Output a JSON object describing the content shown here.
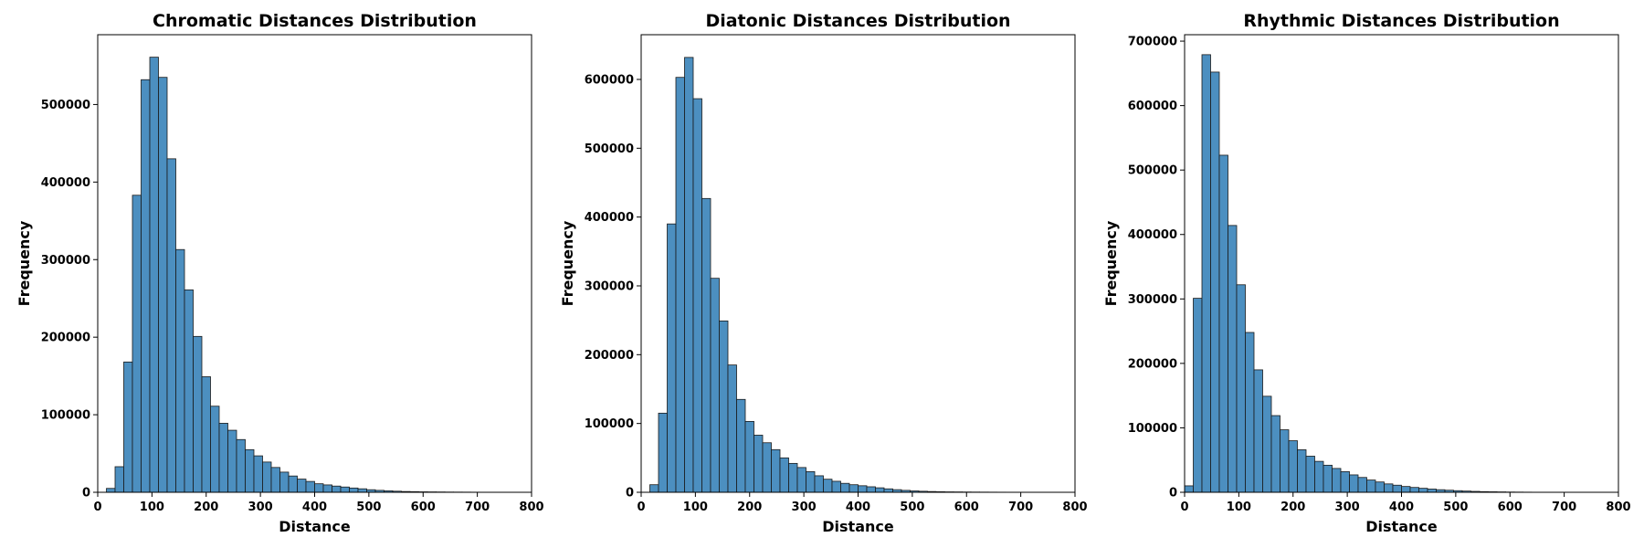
{
  "chart_data": [
    {
      "type": "bar",
      "title": "Chromatic Distances Distribution",
      "xlabel": "Distance",
      "ylabel": "Frequency",
      "xlim": [
        0,
        800
      ],
      "ylim": [
        0,
        590000
      ],
      "xticks": [
        0,
        100,
        200,
        300,
        400,
        500,
        600,
        700,
        800
      ],
      "yticks": [
        0,
        100000,
        200000,
        300000,
        400000,
        500000
      ],
      "bin_start": 16,
      "bin_width": 16,
      "values": [
        5000,
        33000,
        168000,
        383000,
        532000,
        561000,
        535000,
        430000,
        313000,
        261000,
        201000,
        149000,
        111000,
        89000,
        80000,
        68000,
        55000,
        47000,
        39000,
        32000,
        26000,
        21000,
        17000,
        14000,
        11000,
        9500,
        8000,
        6800,
        5500,
        4500,
        3300,
        2500,
        1900,
        1400,
        1000,
        800,
        600,
        500,
        400,
        300,
        250,
        200,
        150
      ],
      "bar_color": "#4c8fc0",
      "grid": false
    },
    {
      "type": "bar",
      "title": "Diatonic Distances Distribution",
      "xlabel": "Distance",
      "ylabel": "Frequency",
      "xlim": [
        0,
        800
      ],
      "ylim": [
        0,
        665000
      ],
      "xticks": [
        0,
        100,
        200,
        300,
        400,
        500,
        600,
        700,
        800
      ],
      "yticks": [
        0,
        100000,
        200000,
        300000,
        400000,
        500000,
        600000
      ],
      "bin_start": 16,
      "bin_width": 16,
      "values": [
        11000,
        115000,
        390000,
        603000,
        632000,
        572000,
        427000,
        311000,
        249000,
        185000,
        135000,
        103000,
        83000,
        72000,
        62000,
        50000,
        42000,
        36000,
        30000,
        24000,
        19000,
        16000,
        13000,
        11000,
        9500,
        8000,
        6500,
        5000,
        3800,
        2800,
        2000,
        1500,
        1100,
        800,
        600,
        500,
        400,
        300,
        250,
        200,
        150,
        100,
        80
      ],
      "bar_color": "#4c8fc0",
      "grid": false
    },
    {
      "type": "bar",
      "title": "Rhythmic Distances Distribution",
      "xlabel": "Distance",
      "ylabel": "Frequency",
      "xlim": [
        0,
        800
      ],
      "ylim": [
        0,
        710000
      ],
      "xticks": [
        0,
        100,
        200,
        300,
        400,
        500,
        600,
        700,
        800
      ],
      "yticks": [
        0,
        100000,
        200000,
        300000,
        400000,
        500000,
        600000,
        700000
      ],
      "bin_start": 0,
      "bin_width": 16,
      "values": [
        10000,
        301000,
        679000,
        652000,
        523000,
        414000,
        322000,
        248000,
        190000,
        149000,
        119000,
        97000,
        80000,
        66000,
        56000,
        48000,
        42000,
        37000,
        32000,
        27000,
        23000,
        19000,
        16000,
        13000,
        11000,
        9000,
        7500,
        6200,
        5000,
        4000,
        3200,
        2500,
        1900,
        1400,
        1000,
        800,
        600,
        400,
        300,
        200
      ],
      "bar_color": "#4c8fc0",
      "grid": false
    }
  ]
}
